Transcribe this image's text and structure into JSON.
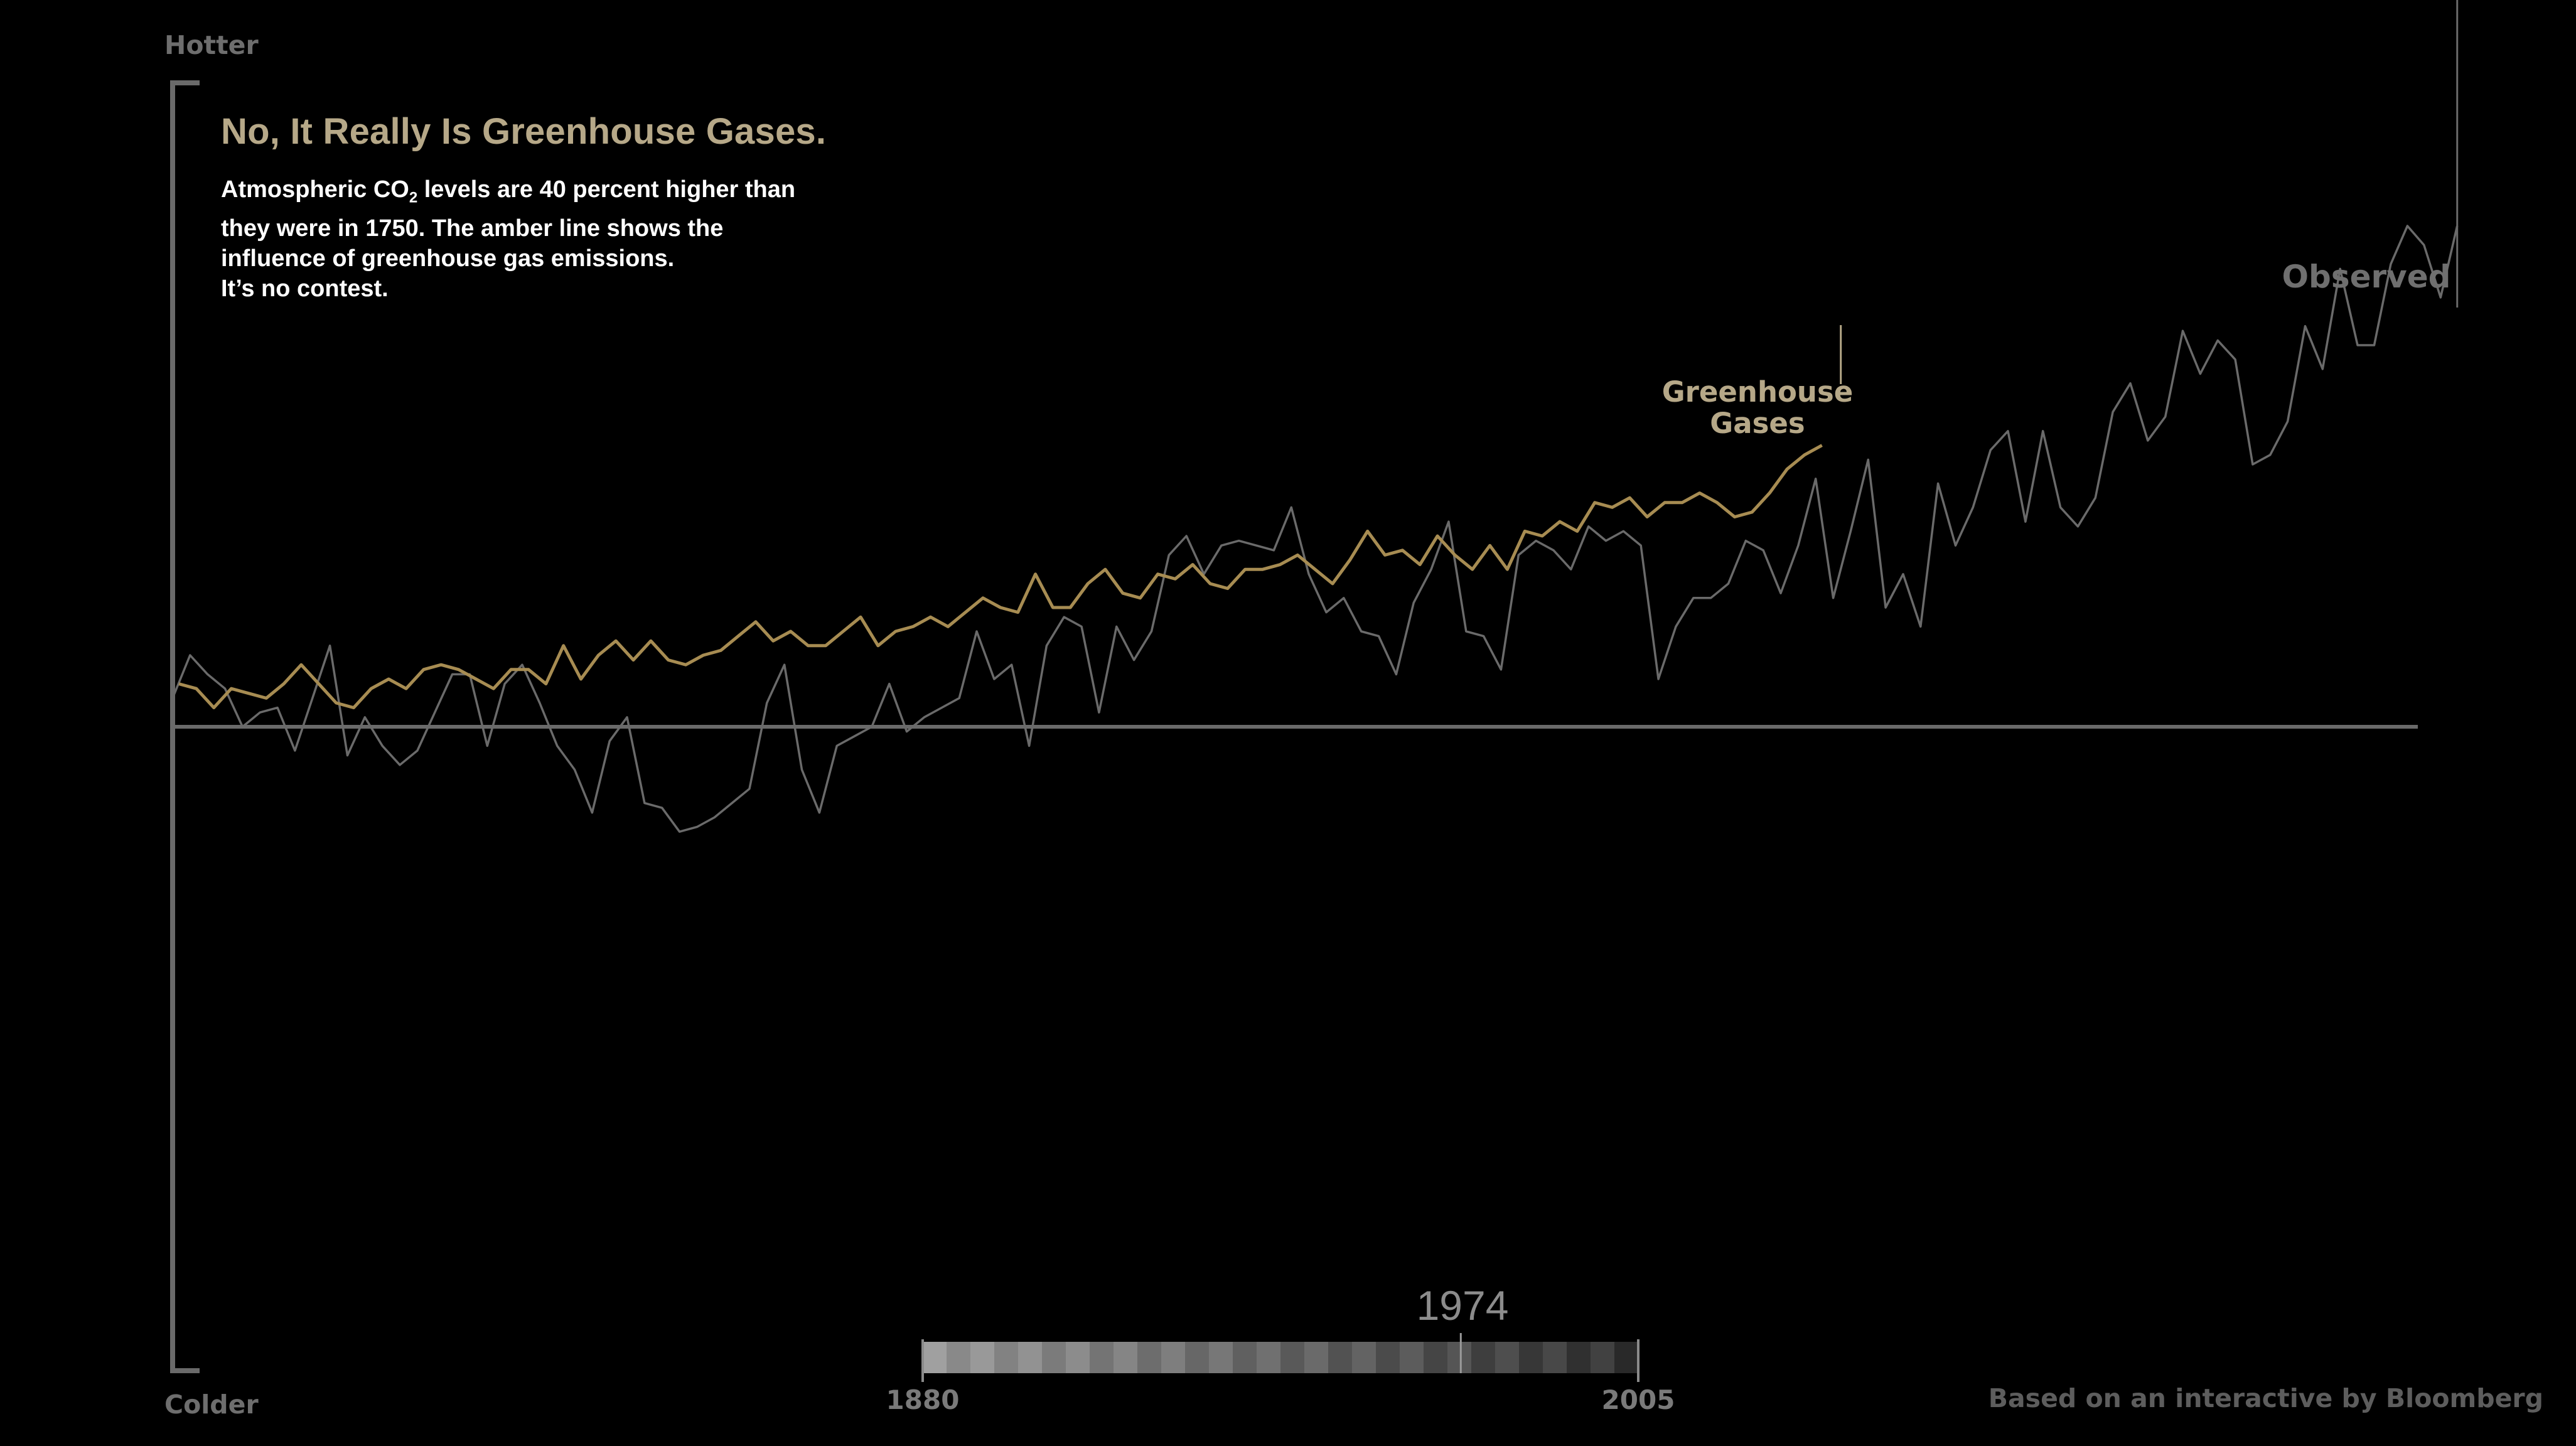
{
  "chart_data": {
    "type": "line",
    "title": "No, It Really Is Greenhouse Gases.",
    "description_lines": [
      "Atmospheric CO",
      "2",
      " levels are 40 percent higher than",
      "they were in 1750.  The amber line shows the",
      "influence of greenhouse gas emissions.",
      "It’s no contest."
    ],
    "ytop_label": "Hotter",
    "ybottom_label": "Colder",
    "x_start": 1880,
    "x_end": 2005,
    "current_year": 1974,
    "xlim": [
      1880,
      2005
    ],
    "ylim": [
      -1.0,
      1.2
    ],
    "baseline": 0,
    "colors": {
      "greenhouse": "#a78c52",
      "observed": "#6a6a6a",
      "axis": "#7a7a7a",
      "title": "#b6a888"
    },
    "series": [
      {
        "name": "Greenhouse Gases",
        "x": [
          1880,
          1881,
          1882,
          1883,
          1884,
          1885,
          1886,
          1887,
          1888,
          1889,
          1890,
          1891,
          1892,
          1893,
          1894,
          1895,
          1896,
          1897,
          1898,
          1899,
          1900,
          1901,
          1902,
          1903,
          1904,
          1905,
          1906,
          1907,
          1908,
          1909,
          1910,
          1911,
          1912,
          1913,
          1914,
          1915,
          1916,
          1917,
          1918,
          1919,
          1920,
          1921,
          1922,
          1923,
          1924,
          1925,
          1926,
          1927,
          1928,
          1929,
          1930,
          1931,
          1932,
          1933,
          1934,
          1935,
          1936,
          1937,
          1938,
          1939,
          1940,
          1941,
          1942,
          1943,
          1944,
          1945,
          1946,
          1947,
          1948,
          1949,
          1950,
          1951,
          1952,
          1953,
          1954,
          1955,
          1956,
          1957,
          1958,
          1959,
          1960,
          1961,
          1962,
          1963,
          1964,
          1965,
          1966,
          1967,
          1968,
          1969,
          1970,
          1971,
          1972,
          1973,
          1974
        ],
        "y": [
          0.09,
          0.08,
          0.04,
          0.08,
          0.07,
          0.06,
          0.09,
          0.13,
          0.09,
          0.05,
          0.04,
          0.08,
          0.1,
          0.08,
          0.12,
          0.13,
          0.12,
          0.1,
          0.08,
          0.12,
          0.12,
          0.09,
          0.17,
          0.1,
          0.15,
          0.18,
          0.14,
          0.18,
          0.14,
          0.13,
          0.15,
          0.16,
          0.19,
          0.22,
          0.18,
          0.2,
          0.17,
          0.17,
          0.2,
          0.23,
          0.17,
          0.2,
          0.21,
          0.23,
          0.21,
          0.24,
          0.27,
          0.25,
          0.24,
          0.32,
          0.25,
          0.25,
          0.3,
          0.33,
          0.28,
          0.27,
          0.32,
          0.31,
          0.34,
          0.3,
          0.29,
          0.33,
          0.33,
          0.34,
          0.36,
          0.33,
          0.3,
          0.35,
          0.41,
          0.36,
          0.37,
          0.34,
          0.4,
          0.36,
          0.33,
          0.38,
          0.33,
          0.41,
          0.4,
          0.43,
          0.41,
          0.47,
          0.46,
          0.48,
          0.44,
          0.47,
          0.47,
          0.49,
          0.47,
          0.44,
          0.45,
          0.49,
          0.54,
          0.57,
          0.59
        ]
      },
      {
        "name": "Observed",
        "x": [
          1880,
          1881,
          1882,
          1883,
          1884,
          1885,
          1886,
          1887,
          1888,
          1889,
          1890,
          1891,
          1892,
          1893,
          1894,
          1895,
          1896,
          1897,
          1898,
          1899,
          1900,
          1901,
          1902,
          1903,
          1904,
          1905,
          1906,
          1907,
          1908,
          1909,
          1910,
          1911,
          1912,
          1913,
          1914,
          1915,
          1916,
          1917,
          1918,
          1919,
          1920,
          1921,
          1922,
          1923,
          1924,
          1925,
          1926,
          1927,
          1928,
          1929,
          1930,
          1931,
          1932,
          1933,
          1934,
          1935,
          1936,
          1937,
          1938,
          1939,
          1940,
          1941,
          1942,
          1943,
          1944,
          1945,
          1946,
          1947,
          1948,
          1949,
          1950,
          1951,
          1952,
          1953,
          1954,
          1955,
          1956,
          1957,
          1958,
          1959,
          1960,
          1961,
          1962,
          1963,
          1964,
          1965,
          1966,
          1967,
          1968,
          1969,
          1970,
          1971,
          1972,
          1973,
          1974,
          1975,
          1976,
          1977,
          1978,
          1979,
          1980,
          1981,
          1982,
          1983,
          1984,
          1985,
          1986,
          1987,
          1988,
          1989,
          1990,
          1991,
          1992,
          1993,
          1994,
          1995,
          1996,
          1997,
          1998,
          1999,
          2000,
          2001,
          2002,
          2003,
          2004,
          2005
        ],
        "y": [
          0.06,
          0.15,
          0.11,
          0.08,
          0.0,
          0.03,
          0.04,
          -0.05,
          0.06,
          0.17,
          -0.06,
          0.02,
          -0.04,
          -0.08,
          -0.05,
          0.03,
          0.11,
          0.11,
          -0.04,
          0.09,
          0.13,
          0.05,
          -0.04,
          -0.09,
          -0.18,
          -0.03,
          0.02,
          -0.16,
          -0.17,
          -0.22,
          -0.21,
          -0.19,
          -0.16,
          -0.13,
          0.05,
          0.13,
          -0.09,
          -0.18,
          -0.04,
          -0.02,
          0.0,
          0.09,
          -0.01,
          0.02,
          0.04,
          0.06,
          0.2,
          0.1,
          0.13,
          -0.04,
          0.17,
          0.23,
          0.21,
          0.03,
          0.21,
          0.14,
          0.2,
          0.36,
          0.4,
          0.32,
          0.38,
          0.39,
          0.38,
          0.37,
          0.46,
          0.32,
          0.24,
          0.27,
          0.2,
          0.19,
          0.11,
          0.26,
          0.33,
          0.43,
          0.2,
          0.19,
          0.12,
          0.36,
          0.39,
          0.37,
          0.33,
          0.42,
          0.39,
          0.41,
          0.38,
          0.1,
          0.21,
          0.27,
          0.27,
          0.3,
          0.39,
          0.37,
          0.28,
          0.38,
          0.52,
          0.27,
          0.41,
          0.56,
          0.25,
          0.32,
          0.21,
          0.51,
          0.38,
          0.46,
          0.58,
          0.62,
          0.43,
          0.62,
          0.46,
          0.42,
          0.48,
          0.66,
          0.72,
          0.6,
          0.65,
          0.83,
          0.74,
          0.81,
          0.77,
          0.55,
          0.57,
          0.64,
          0.84,
          0.75,
          0.96,
          0.8
        ],
        "extra_tail": [
          0.8,
          0.97,
          1.05,
          1.01,
          0.9,
          1.05
        ]
      }
    ]
  },
  "credit": "Based on an interactive by Bloomberg"
}
